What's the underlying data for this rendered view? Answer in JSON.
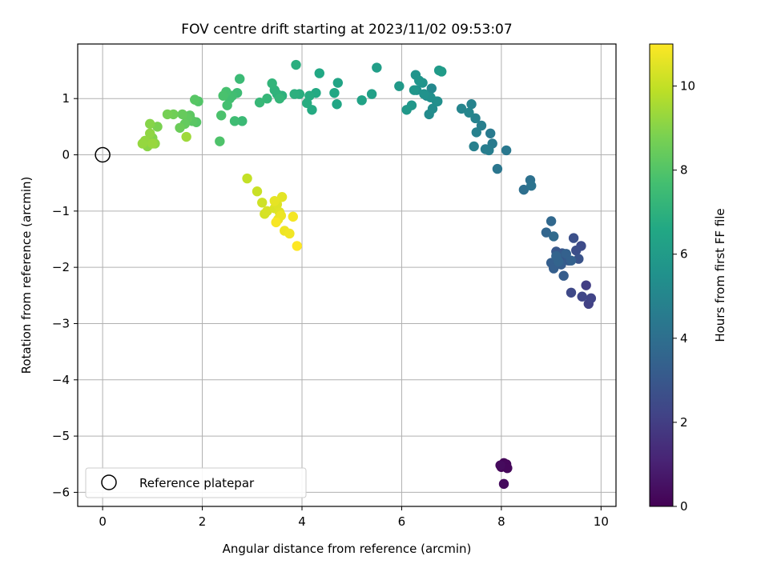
{
  "chart_data": {
    "type": "scatter",
    "title": "FOV centre drift starting at 2023/11/02 09:53:07",
    "xlabel": "Angular distance from reference (arcmin)",
    "ylabel": "Rotation from reference (arcmin)",
    "xlim": [
      -0.5,
      10.3
    ],
    "ylim": [
      -6.25,
      1.97
    ],
    "xticks": [
      0,
      2,
      4,
      6,
      8,
      10
    ],
    "yticks": [
      -6,
      -5,
      -4,
      -3,
      -2,
      -1,
      0,
      1
    ],
    "grid": true,
    "legend": {
      "placement": "lower-left",
      "entries": [
        "Reference platepar"
      ]
    },
    "reference_point": {
      "x": 0,
      "y": 0
    },
    "colorbar": {
      "label": "Hours from first FF file",
      "range": [
        0,
        11
      ],
      "ticks": [
        0,
        2,
        4,
        6,
        8,
        10
      ],
      "colormap": "viridis"
    },
    "series": [
      {
        "x": [
          8.0,
          8.05,
          8.1,
          8.12,
          7.98,
          8.05,
          9.7,
          9.75,
          9.8,
          9.62,
          9.4,
          9.6,
          9.5,
          9.45,
          9.55,
          9.3,
          9.22,
          9.1,
          9.15,
          9.35,
          9.2,
          9.25,
          9.0,
          9.05,
          9.3,
          9.4,
          9.15,
          9.1,
          8.9,
          9.0,
          9.05,
          8.45,
          8.58,
          8.6,
          7.92,
          8.1,
          7.78,
          7.82,
          7.68,
          7.75,
          7.6,
          7.45,
          7.5,
          7.48,
          7.4,
          7.2,
          7.35,
          6.6,
          6.5,
          6.55,
          6.62,
          6.7,
          6.72,
          6.58,
          6.3,
          6.45,
          6.42,
          6.28,
          6.35,
          6.25,
          6.2,
          6.1,
          5.95,
          6.75,
          6.8,
          5.5,
          5.4,
          5.2,
          4.72,
          4.7,
          4.65,
          4.35,
          4.28,
          4.2,
          4.15,
          4.1,
          3.95,
          3.88,
          3.85,
          3.6,
          3.5,
          3.45,
          3.4,
          3.55,
          3.3,
          3.15,
          2.8,
          2.75,
          2.7,
          2.65,
          2.6,
          2.55,
          2.5,
          2.48,
          2.42,
          2.38,
          2.35,
          1.92,
          1.88,
          1.85,
          1.8,
          1.75,
          1.7,
          1.65,
          1.6,
          1.55,
          1.42,
          1.3,
          1.1,
          1.0,
          0.95,
          0.9,
          1.05,
          0.95,
          0.85,
          0.8,
          1.0,
          1.68,
          2.9,
          3.1,
          3.2,
          3.25,
          3.3,
          3.45,
          3.5,
          3.55,
          3.6,
          3.45,
          3.52,
          3.58,
          3.65,
          3.75,
          3.82,
          3.48,
          3.9
        ],
        "y": [
          -5.55,
          -5.48,
          -5.5,
          -5.57,
          -5.52,
          -5.85,
          -2.32,
          -2.65,
          -2.55,
          -2.52,
          -2.45,
          -1.62,
          -1.7,
          -1.48,
          -1.85,
          -1.82,
          -1.75,
          -1.72,
          -1.78,
          -1.88,
          -1.95,
          -2.15,
          -1.92,
          -2.02,
          -1.76,
          -1.88,
          -1.9,
          -1.8,
          -1.38,
          -1.18,
          -1.45,
          -0.62,
          -0.45,
          -0.55,
          -0.25,
          0.08,
          0.38,
          0.2,
          0.1,
          0.08,
          0.52,
          0.15,
          0.4,
          0.65,
          0.9,
          0.82,
          0.75,
          1.18,
          1.05,
          0.72,
          0.82,
          0.95,
          0.95,
          1.02,
          1.15,
          1.08,
          1.28,
          1.42,
          1.32,
          1.15,
          0.88,
          0.8,
          1.22,
          1.5,
          1.48,
          1.55,
          1.08,
          0.97,
          1.28,
          0.9,
          1.1,
          1.45,
          1.1,
          0.8,
          1.05,
          0.92,
          1.08,
          1.6,
          1.08,
          1.05,
          1.08,
          1.15,
          1.27,
          1.0,
          1.0,
          0.93,
          0.6,
          1.35,
          1.1,
          0.6,
          1.05,
          1.0,
          0.88,
          1.12,
          1.05,
          0.7,
          0.24,
          0.95,
          0.58,
          0.98,
          0.6,
          0.7,
          0.65,
          0.55,
          0.72,
          0.48,
          0.72,
          0.72,
          0.5,
          0.3,
          0.55,
          0.15,
          0.2,
          0.38,
          0.25,
          0.2,
          0.2,
          0.32,
          -0.42,
          -0.65,
          -0.85,
          -1.05,
          -1.0,
          -0.95,
          -0.88,
          -1.02,
          -0.75,
          -0.82,
          -1.15,
          -1.08,
          -1.35,
          -1.4,
          -1.1,
          -1.2,
          -1.62
        ],
        "hours": [
          0.1,
          0.1,
          0.2,
          0.2,
          0.3,
          0.3,
          2.0,
          2.1,
          2.2,
          2.3,
          2.4,
          2.5,
          2.6,
          2.7,
          2.8,
          2.9,
          3.0,
          3.0,
          3.1,
          3.1,
          3.2,
          3.2,
          3.3,
          3.3,
          3.4,
          3.4,
          3.5,
          3.5,
          3.6,
          3.7,
          3.8,
          4.0,
          4.1,
          4.2,
          4.3,
          4.4,
          4.5,
          4.55,
          4.6,
          4.65,
          4.7,
          4.75,
          4.8,
          4.85,
          4.9,
          4.95,
          5.0,
          5.1,
          5.2,
          5.25,
          5.3,
          5.35,
          5.4,
          5.45,
          5.5,
          5.55,
          5.6,
          5.65,
          5.7,
          5.75,
          5.8,
          5.85,
          5.9,
          5.95,
          6.0,
          6.1,
          6.2,
          6.3,
          6.4,
          6.5,
          6.55,
          6.6,
          6.65,
          6.7,
          6.75,
          6.8,
          6.85,
          6.9,
          6.95,
          7.0,
          7.05,
          7.1,
          7.15,
          7.2,
          7.25,
          7.3,
          7.4,
          7.45,
          7.5,
          7.55,
          7.6,
          7.65,
          7.7,
          7.75,
          7.8,
          7.85,
          7.9,
          8.0,
          8.05,
          8.1,
          8.15,
          8.2,
          8.3,
          8.35,
          8.4,
          8.5,
          8.6,
          8.7,
          8.8,
          8.9,
          9.0,
          9.05,
          9.1,
          9.15,
          9.2,
          9.25,
          9.3,
          9.4,
          10.0,
          10.1,
          10.2,
          10.3,
          10.35,
          10.4,
          10.45,
          10.5,
          10.55,
          10.6,
          10.65,
          10.7,
          10.75,
          10.8,
          10.85,
          10.9,
          11.0
        ]
      }
    ]
  }
}
